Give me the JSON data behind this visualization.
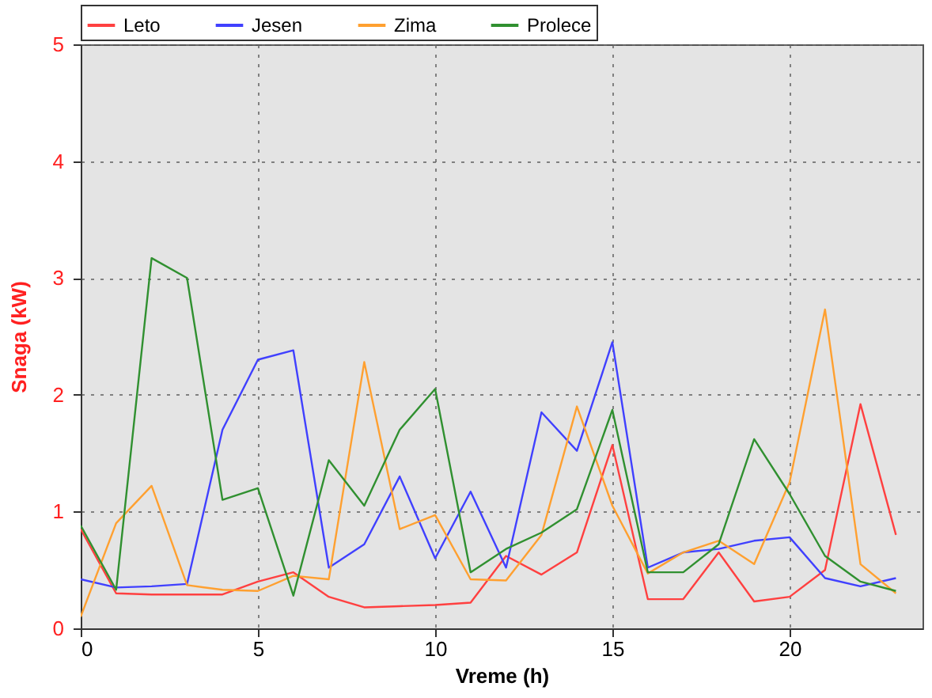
{
  "chart_data": {
    "type": "line",
    "xlabel": "Vreme (h)",
    "ylabel": "Snaga (kW)",
    "x": [
      0,
      1,
      2,
      3,
      4,
      5,
      6,
      7,
      8,
      9,
      10,
      11,
      12,
      13,
      14,
      15,
      16,
      17,
      18,
      19,
      20,
      21,
      22,
      23
    ],
    "xlim": [
      0,
      23.75
    ],
    "xticks": [
      0,
      5,
      10,
      15,
      20
    ],
    "ylim": [
      0,
      5
    ],
    "yticks": [
      0,
      1,
      2,
      3,
      4,
      5
    ],
    "grid": true,
    "legend": "top left",
    "line_style": "solid",
    "marker": "none",
    "series": [
      {
        "name": "Leto",
        "color": "#ff4040",
        "values": [
          0.85,
          0.3,
          0.29,
          0.29,
          0.29,
          0.4,
          0.48,
          0.27,
          0.18,
          0.19,
          0.2,
          0.22,
          0.62,
          0.46,
          0.65,
          1.57,
          0.25,
          0.25,
          0.65,
          0.23,
          0.27,
          0.5,
          1.92,
          0.8
        ]
      },
      {
        "name": "Jesen",
        "color": "#4040ff",
        "values": [
          0.42,
          0.35,
          0.36,
          0.38,
          1.7,
          2.3,
          2.38,
          0.52,
          0.72,
          1.3,
          0.6,
          1.17,
          0.52,
          1.85,
          1.52,
          2.45,
          0.52,
          0.65,
          0.68,
          0.75,
          0.78,
          0.43,
          0.36,
          0.43
        ]
      },
      {
        "name": "Zima",
        "color": "#ffa030",
        "values": [
          0.1,
          0.9,
          1.22,
          0.37,
          0.33,
          0.32,
          0.45,
          0.42,
          2.28,
          0.85,
          0.97,
          0.42,
          0.41,
          0.8,
          1.9,
          1.05,
          0.47,
          0.65,
          0.75,
          0.55,
          1.25,
          2.73,
          0.55,
          0.3
        ]
      },
      {
        "name": "Prolece",
        "color": "#309030",
        "values": [
          0.88,
          0.33,
          3.17,
          3.0,
          1.1,
          1.2,
          0.28,
          1.44,
          1.05,
          1.7,
          2.05,
          0.48,
          0.68,
          0.82,
          1.02,
          1.87,
          0.48,
          0.48,
          0.72,
          1.62,
          1.15,
          0.62,
          0.4,
          0.32
        ]
      }
    ]
  }
}
